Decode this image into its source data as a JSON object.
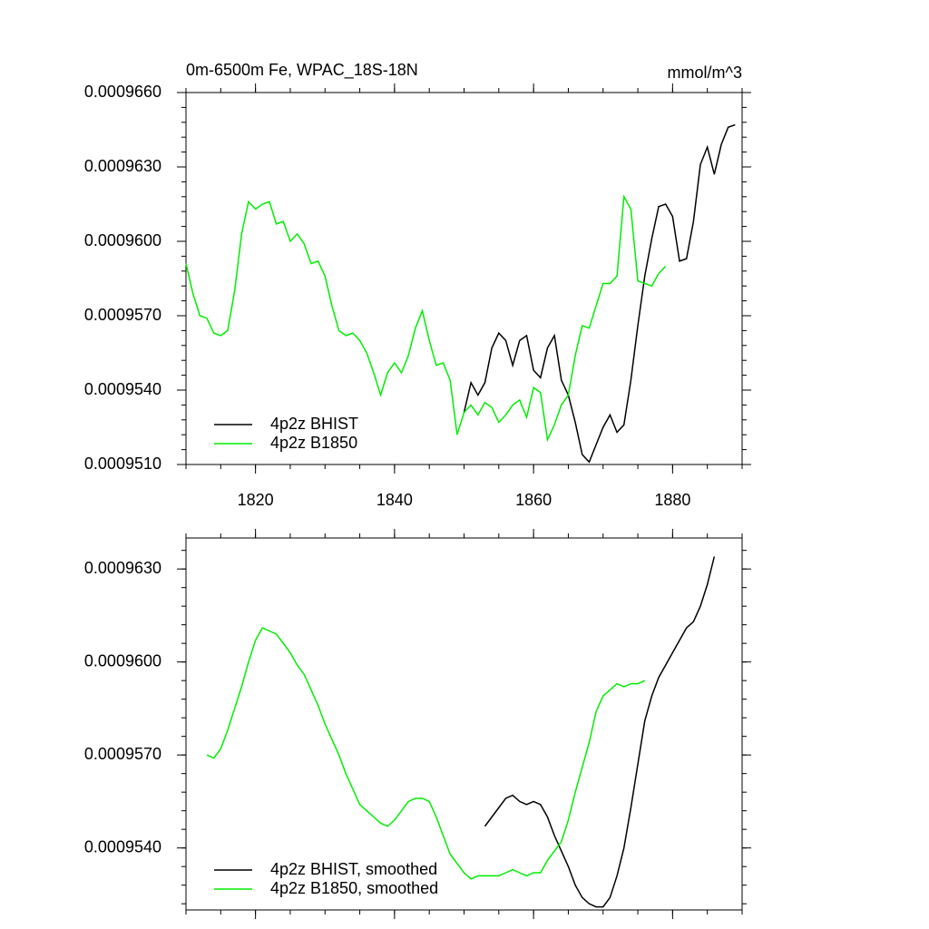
{
  "chart_data": [
    {
      "type": "line",
      "title": "0m-6500m Fe, WPAC_18S-18N",
      "units": "mmol/m^3",
      "xlim": [
        1810,
        1890
      ],
      "xticks": [
        1820,
        1840,
        1860,
        1880
      ],
      "ylim": [
        0.000951,
        0.000966
      ],
      "yticks": [
        {
          "value": 0.000951,
          "label": "0.0009510"
        },
        {
          "value": 0.000954,
          "label": "0.0009540"
        },
        {
          "value": 0.000957,
          "label": "0.0009570"
        },
        {
          "value": 0.00096,
          "label": "0.0009600"
        },
        {
          "value": 0.000963,
          "label": "0.0009630"
        },
        {
          "value": 0.000966,
          "label": "0.0009660"
        }
      ],
      "legend": "lower left",
      "series": [
        {
          "name": "4p2z BHIST",
          "color": "#000000",
          "x": [
            1850,
            1851,
            1852,
            1853,
            1854,
            1855,
            1856,
            1857,
            1858,
            1859,
            1860,
            1861,
            1862,
            1863,
            1864,
            1865,
            1866,
            1867,
            1868,
            1869,
            1870,
            1871,
            1872,
            1873,
            1874,
            1875,
            1876,
            1877,
            1878,
            1879,
            1880,
            1881,
            1882,
            1883,
            1884,
            1885,
            1886,
            1887,
            1888,
            1889
          ],
          "values": [
            0.0009531,
            0.0009543,
            0.0009538,
            0.0009543,
            0.0009557,
            0.0009563,
            0.000956,
            0.000955,
            0.000956,
            0.0009562,
            0.0009548,
            0.0009545,
            0.0009557,
            0.0009562,
            0.0009544,
            0.0009538,
            0.0009527,
            0.0009514,
            0.0009511,
            0.0009518,
            0.0009525,
            0.000953,
            0.0009523,
            0.0009526,
            0.0009544,
            0.0009566,
            0.0009586,
            0.0009601,
            0.0009614,
            0.0009615,
            0.000961,
            0.0009592,
            0.0009593,
            0.0009608,
            0.0009631,
            0.0009638,
            0.0009627,
            0.0009639,
            0.0009646,
            0.0009647
          ]
        },
        {
          "name": "4p2z B1850",
          "color": "#00ee00",
          "x": [
            1810,
            1811,
            1812,
            1813,
            1814,
            1815,
            1816,
            1817,
            1818,
            1819,
            1820,
            1821,
            1822,
            1823,
            1824,
            1825,
            1826,
            1827,
            1828,
            1829,
            1830,
            1831,
            1832,
            1833,
            1834,
            1835,
            1836,
            1837,
            1838,
            1839,
            1840,
            1841,
            1842,
            1843,
            1844,
            1845,
            1846,
            1847,
            1848,
            1849,
            1850,
            1851,
            1852,
            1853,
            1854,
            1855,
            1856,
            1857,
            1858,
            1859,
            1860,
            1861,
            1862,
            1863,
            1864,
            1865,
            1866,
            1867,
            1868,
            1869,
            1870,
            1871,
            1872,
            1873,
            1874,
            1875,
            1876,
            1877,
            1878,
            1879
          ],
          "values": [
            0.0009591,
            0.0009579,
            0.000957,
            0.0009569,
            0.0009563,
            0.0009562,
            0.0009564,
            0.000958,
            0.0009603,
            0.0009616,
            0.0009613,
            0.0009615,
            0.0009616,
            0.0009607,
            0.0009608,
            0.00096,
            0.0009603,
            0.0009599,
            0.0009591,
            0.0009592,
            0.0009586,
            0.0009574,
            0.0009564,
            0.0009562,
            0.0009563,
            0.000956,
            0.0009555,
            0.0009547,
            0.0009538,
            0.0009547,
            0.0009551,
            0.0009547,
            0.0009554,
            0.0009565,
            0.0009572,
            0.000956,
            0.000955,
            0.0009551,
            0.0009544,
            0.0009522,
            0.0009531,
            0.0009534,
            0.000953,
            0.0009535,
            0.0009533,
            0.0009527,
            0.000953,
            0.0009534,
            0.0009536,
            0.0009529,
            0.0009541,
            0.0009539,
            0.000952,
            0.0009526,
            0.0009534,
            0.0009538,
            0.0009554,
            0.0009566,
            0.0009565,
            0.0009574,
            0.0009583,
            0.0009583,
            0.0009586,
            0.0009618,
            0.0009613,
            0.0009584,
            0.0009583,
            0.0009582,
            0.0009587,
            0.000959
          ]
        }
      ]
    },
    {
      "type": "line",
      "xlim": [
        1810,
        1890
      ],
      "xticks": [
        1820,
        1840,
        1860,
        1880
      ],
      "ylim": [
        0.000952,
        0.000964
      ],
      "yticks": [
        {
          "value": 0.000954,
          "label": "0.0009540"
        },
        {
          "value": 0.000957,
          "label": "0.0009570"
        },
        {
          "value": 0.00096,
          "label": "0.0009600"
        },
        {
          "value": 0.000963,
          "label": "0.0009630"
        }
      ],
      "legend": "lower left",
      "series": [
        {
          "name": "4p2z BHIST, smoothed",
          "color": "#000000",
          "x": [
            1853,
            1854,
            1855,
            1856,
            1857,
            1858,
            1859,
            1860,
            1861,
            1862,
            1863,
            1864,
            1865,
            1866,
            1867,
            1868,
            1869,
            1870,
            1871,
            1872,
            1873,
            1874,
            1875,
            1876,
            1877,
            1878,
            1879,
            1880,
            1881,
            1882,
            1883,
            1884,
            1885,
            1886
          ],
          "values": [
            0.0009547,
            0.000955,
            0.0009553,
            0.0009556,
            0.0009557,
            0.0009555,
            0.0009554,
            0.0009555,
            0.0009554,
            0.000955,
            0.0009544,
            0.0009539,
            0.0009534,
            0.0009528,
            0.0009524,
            0.0009522,
            0.0009521,
            0.0009521,
            0.0009524,
            0.0009531,
            0.000954,
            0.0009553,
            0.0009567,
            0.0009581,
            0.0009589,
            0.0009595,
            0.0009599,
            0.0009603,
            0.0009607,
            0.0009611,
            0.0009613,
            0.0009618,
            0.0009625,
            0.0009634
          ]
        },
        {
          "name": "4p2z B1850, smoothed",
          "color": "#00ee00",
          "x": [
            1813,
            1814,
            1815,
            1816,
            1817,
            1818,
            1819,
            1820,
            1821,
            1822,
            1823,
            1824,
            1825,
            1826,
            1827,
            1828,
            1829,
            1830,
            1831,
            1832,
            1833,
            1834,
            1835,
            1836,
            1837,
            1838,
            1839,
            1840,
            1841,
            1842,
            1843,
            1844,
            1845,
            1846,
            1847,
            1848,
            1849,
            1850,
            1851,
            1852,
            1853,
            1854,
            1855,
            1856,
            1857,
            1858,
            1859,
            1860,
            1861,
            1862,
            1863,
            1864,
            1865,
            1866,
            1867,
            1868,
            1869,
            1870,
            1871,
            1872,
            1873,
            1874,
            1875,
            1876
          ],
          "values": [
            0.000957,
            0.0009569,
            0.0009572,
            0.0009578,
            0.0009585,
            0.0009592,
            0.00096,
            0.0009607,
            0.0009611,
            0.000961,
            0.0009609,
            0.0009606,
            0.0009603,
            0.0009599,
            0.0009596,
            0.0009591,
            0.0009586,
            0.000958,
            0.0009575,
            0.000957,
            0.0009564,
            0.0009559,
            0.0009554,
            0.0009552,
            0.000955,
            0.0009548,
            0.0009547,
            0.0009549,
            0.0009552,
            0.0009555,
            0.0009556,
            0.0009556,
            0.0009555,
            0.000955,
            0.0009544,
            0.0009538,
            0.0009535,
            0.0009532,
            0.000953,
            0.0009531,
            0.0009531,
            0.0009531,
            0.0009531,
            0.0009532,
            0.0009533,
            0.0009532,
            0.0009531,
            0.0009532,
            0.0009532,
            0.0009536,
            0.0009539,
            0.0009542,
            0.0009549,
            0.0009558,
            0.0009566,
            0.0009574,
            0.0009584,
            0.0009589,
            0.0009591,
            0.0009593,
            0.0009592,
            0.0009593,
            0.0009593,
            0.0009594
          ]
        }
      ]
    }
  ]
}
